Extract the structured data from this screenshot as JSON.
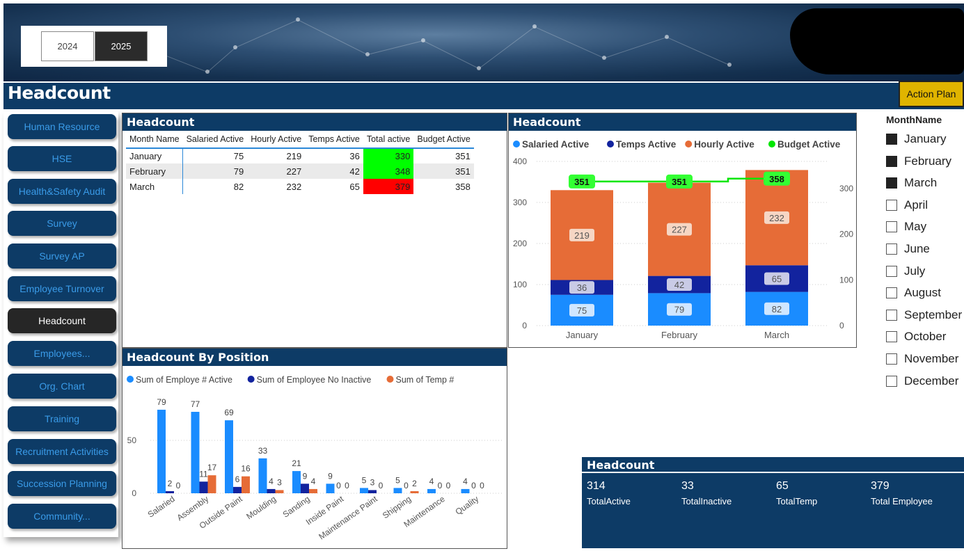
{
  "years": {
    "y2024": "2024",
    "y2025": "2025"
  },
  "page": {
    "title": "Headcount",
    "action_plan": "Action Plan"
  },
  "nav": [
    {
      "label": "Human Resource"
    },
    {
      "label": "HSE"
    },
    {
      "label": "Health&Safety Audit"
    },
    {
      "label": "Survey"
    },
    {
      "label": "Survey AP"
    },
    {
      "label": "Employee Turnover"
    },
    {
      "label": "Headcount"
    },
    {
      "label": "Employees..."
    },
    {
      "label": "Org. Chart"
    },
    {
      "label": "Training"
    },
    {
      "label": "Recruitment Activities"
    },
    {
      "label": "Succession Planning"
    },
    {
      "label": "Community..."
    }
  ],
  "table": {
    "title": "Headcount",
    "headers": [
      "Month Name",
      "Salaried Active",
      "Hourly Active",
      "Temps Active",
      "Total active",
      "Budget Active"
    ],
    "rows": [
      [
        "January",
        "75",
        "219",
        "36",
        "330",
        "351"
      ],
      [
        "February",
        "79",
        "227",
        "42",
        "348",
        "351"
      ],
      [
        "March",
        "82",
        "232",
        "65",
        "379",
        "358"
      ]
    ],
    "total_status": [
      "green",
      "green",
      "red"
    ]
  },
  "slicer": {
    "title": "MonthName",
    "months": [
      {
        "label": "January",
        "checked": true
      },
      {
        "label": "February",
        "checked": true
      },
      {
        "label": "March",
        "checked": true
      },
      {
        "label": "April",
        "checked": false
      },
      {
        "label": "May",
        "checked": false
      },
      {
        "label": "June",
        "checked": false
      },
      {
        "label": "July",
        "checked": false
      },
      {
        "label": "August",
        "checked": false
      },
      {
        "label": "September",
        "checked": false
      },
      {
        "label": "October",
        "checked": false
      },
      {
        "label": "November",
        "checked": false
      },
      {
        "label": "December",
        "checked": false
      }
    ]
  },
  "kpi": {
    "title": "Headcount",
    "items": [
      {
        "value": "314",
        "label": "TotalActive"
      },
      {
        "value": "33",
        "label": "TotalInactive"
      },
      {
        "value": "65",
        "label": "TotalTemp"
      },
      {
        "value": "379",
        "label": "Total Employee"
      }
    ]
  },
  "chart_data": [
    {
      "type": "bar",
      "stacked": true,
      "title": "Headcount",
      "categories": [
        "January",
        "February",
        "March"
      ],
      "series": [
        {
          "name": "Salaried Active",
          "values": [
            75,
            79,
            82
          ],
          "color": "#1a8cff"
        },
        {
          "name": "Temps Active",
          "values": [
            36,
            42,
            65
          ],
          "color": "#12239e"
        },
        {
          "name": "Hourly Active",
          "values": [
            219,
            227,
            232
          ],
          "color": "#e66c37"
        }
      ],
      "line_series": {
        "name": "Budget Active",
        "values": [
          351,
          351,
          358
        ],
        "color": "#00e600",
        "axis": "secondary"
      },
      "ylim": [
        0,
        400
      ],
      "yticks": [
        0,
        100,
        200,
        300,
        400
      ],
      "y2ticks": [
        0,
        100,
        200,
        300
      ],
      "legend": "top",
      "grid": true
    },
    {
      "type": "bar",
      "title": "Headcount By Position",
      "categories": [
        "Salaried",
        "Assembly",
        "Outside Paint",
        "Moulding",
        "Sanding",
        "Inside Paint",
        "Maintenance Paint",
        "Shipping",
        "Maintenance",
        "Quality"
      ],
      "series": [
        {
          "name": "Sum of Employe # Active",
          "values": [
            79,
            77,
            69,
            33,
            21,
            9,
            5,
            5,
            4,
            4
          ],
          "color": "#1a8cff"
        },
        {
          "name": "Sum of Employee No Inactive",
          "values": [
            2,
            11,
            6,
            4,
            9,
            0,
            3,
            0,
            0,
            0
          ],
          "color": "#12239e"
        },
        {
          "name": "Sum of Temp #",
          "values": [
            0,
            17,
            16,
            3,
            4,
            0,
            0,
            2,
            0,
            0
          ],
          "color": "#e66c37"
        }
      ],
      "yticks": [
        0,
        50
      ],
      "legend": "top",
      "grid": true
    }
  ]
}
